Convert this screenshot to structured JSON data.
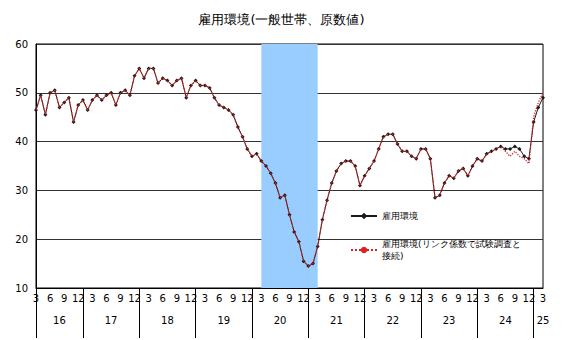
{
  "chart_data": {
    "type": "line",
    "title": "雇用環境(一般世帯、原数値)",
    "categories": [
      "3",
      null,
      null,
      "6",
      null,
      null,
      "9",
      null,
      null,
      "12",
      null,
      null,
      "3",
      null,
      null,
      "6",
      null,
      null,
      "9",
      null,
      null,
      "12",
      null,
      null,
      "3",
      null,
      null,
      "6",
      null,
      null,
      "9",
      null,
      null,
      "12",
      null,
      null,
      "3",
      null,
      null,
      "6",
      null,
      null,
      "9",
      null,
      null,
      "12",
      null,
      null,
      "3",
      null,
      null,
      "6",
      null,
      null,
      "9",
      null,
      null,
      "12",
      null,
      null,
      "3",
      null,
      null,
      "6",
      null,
      null,
      "9",
      null,
      null,
      "12",
      null,
      null,
      "3",
      null,
      null,
      "6",
      null,
      null,
      "9",
      null,
      null,
      "12",
      null,
      null,
      "3",
      null,
      null,
      "6",
      null,
      null,
      "9",
      null,
      null,
      "12",
      null,
      null,
      "3",
      null,
      null,
      "6",
      null,
      null,
      "9",
      null,
      null,
      "12",
      null,
      null,
      "3"
    ],
    "year_labels": [
      null,
      null,
      null,
      null,
      null,
      "16",
      null,
      null,
      null,
      null,
      null,
      null,
      null,
      null,
      null,
      null,
      "17",
      null,
      null,
      null,
      null,
      null,
      null,
      null,
      null,
      null,
      null,
      null,
      "18",
      null,
      null,
      null,
      null,
      null,
      null,
      null,
      null,
      null,
      null,
      null,
      "19",
      null,
      null,
      null,
      null,
      null,
      null,
      null,
      null,
      null,
      null,
      null,
      "20",
      null,
      null,
      null,
      null,
      null,
      null,
      null,
      null,
      null,
      null,
      null,
      "21",
      null,
      null,
      null,
      null,
      null,
      null,
      null,
      null,
      null,
      null,
      null,
      "22",
      null,
      null,
      null,
      null,
      null,
      null,
      null,
      null,
      null,
      null,
      null,
      "23",
      null,
      null,
      null,
      null,
      null,
      null,
      null,
      null,
      null,
      null,
      null,
      "24",
      null,
      null,
      null,
      null,
      null,
      null,
      null,
      "25"
    ],
    "series": [
      {
        "name": "雇用環境",
        "color": "#1a1a1a",
        "marker": "diamond",
        "line_style": "solid",
        "values": [
          46.5,
          49.5,
          45.5,
          50,
          50.5,
          47,
          48,
          49,
          44,
          47.5,
          48.5,
          46.5,
          48.5,
          49.5,
          48.5,
          49.5,
          50,
          47.5,
          50,
          50.5,
          49.5,
          53.5,
          55,
          53,
          55,
          55,
          52,
          53,
          52.5,
          51.5,
          52.5,
          53,
          49,
          51.5,
          52.5,
          51.5,
          51.5,
          51,
          49,
          47.5,
          47,
          46.5,
          45.5,
          43,
          41,
          38.5,
          37,
          37.5,
          36,
          35,
          33.5,
          31.5,
          28.5,
          29,
          25,
          21.5,
          19.5,
          15.5,
          14.5,
          15,
          18.5,
          24,
          28,
          31.5,
          34,
          35.5,
          36,
          36,
          35,
          31,
          33,
          34.5,
          36,
          38.5,
          41,
          41.5,
          41.5,
          39.5,
          38,
          38,
          37,
          36.5,
          38.5,
          38.5,
          36.5,
          28.5,
          29,
          31.5,
          33,
          32.5,
          34,
          34.5,
          33,
          35,
          36.5,
          36,
          37.5,
          38,
          38.5,
          39,
          38.5,
          38.5,
          39,
          38.5,
          37,
          36.5,
          44,
          47,
          49
        ]
      },
      {
        "name": "雇用環境(リンク係数で試験調査と\n接続)",
        "color": "#e02020",
        "marker": "none",
        "line_style": "dotted",
        "values": [
          46.5,
          49.5,
          45.5,
          50,
          50.5,
          47,
          48,
          49,
          44,
          47.5,
          48.5,
          46.5,
          48.5,
          49.5,
          48.5,
          49.5,
          50,
          47.5,
          50,
          50.5,
          49.5,
          53.5,
          55,
          53,
          55,
          55,
          52,
          53,
          52.5,
          51.5,
          52.5,
          53,
          49,
          51.5,
          52.5,
          51.5,
          51.5,
          51,
          49,
          47.5,
          47,
          46.5,
          45.5,
          43,
          41,
          38.5,
          37,
          37.5,
          36,
          35,
          33.5,
          31.5,
          28.5,
          29,
          25,
          21.5,
          19.5,
          15.5,
          14.5,
          15,
          18.5,
          24,
          28,
          31.5,
          34,
          35.5,
          36,
          36,
          35,
          31,
          33,
          34.5,
          36,
          38.5,
          41,
          41.5,
          41.5,
          39.5,
          38,
          38,
          37,
          36.5,
          38.5,
          38.5,
          36.5,
          28.5,
          29,
          31.5,
          33,
          32.5,
          34,
          34.5,
          33,
          35,
          36.5,
          36,
          37.5,
          38,
          38.5,
          39,
          38,
          37,
          38,
          37,
          36.5,
          35.5,
          45,
          48,
          50
        ]
      }
    ],
    "highlight": {
      "from": 48,
      "to": 60,
      "color": "#99ccff"
    },
    "ylim": [
      10,
      60
    ],
    "yticks": [
      10,
      20,
      30,
      40,
      50,
      60
    ],
    "grid": true,
    "legend": "right"
  }
}
